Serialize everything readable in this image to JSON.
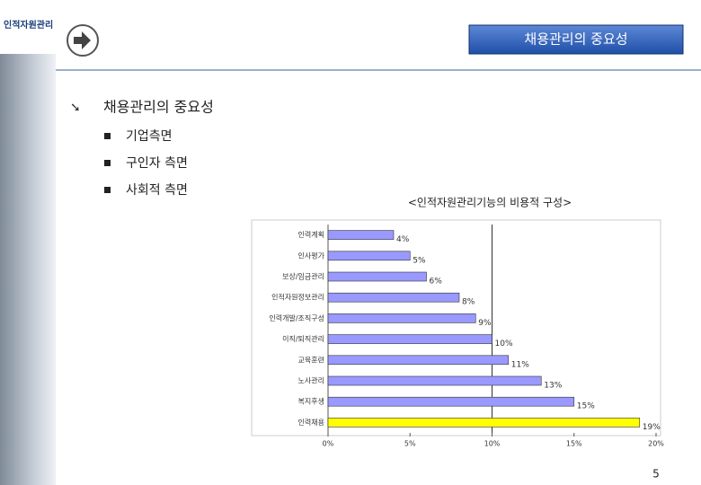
{
  "logo": "인적자원관리",
  "header": {
    "title": "채용관리의 중요성"
  },
  "section": {
    "title": "채용관리의 중요성",
    "bullets": [
      "기업측면",
      "구인자 측면",
      "사회적 측면"
    ]
  },
  "chart_data": {
    "type": "hbar",
    "title": "<인적자원관리기능의 비용적 구성>",
    "categories": [
      "인력계획",
      "인사평가",
      "보상/임금관리",
      "인적자원정보관리",
      "인력개발/조직구성",
      "이직/퇴직관리",
      "교육훈련",
      "노사관리",
      "복지후생",
      "인력채용"
    ],
    "values": [
      4,
      5,
      6,
      8,
      9,
      10,
      11,
      13,
      15,
      19
    ],
    "value_labels": [
      "4%",
      "5%",
      "6%",
      "8%",
      "9%",
      "10%",
      "11%",
      "13%",
      "15%",
      "19%"
    ],
    "colors": [
      "#9999ff",
      "#9999ff",
      "#9999ff",
      "#9999ff",
      "#9999ff",
      "#9999ff",
      "#9999ff",
      "#9999ff",
      "#9999ff",
      "#ffff00"
    ],
    "xlim": [
      0,
      20
    ],
    "xticks": [
      {
        "value": 0,
        "label": "0%"
      },
      {
        "value": 5,
        "label": "5%"
      },
      {
        "value": 10,
        "label": "10%"
      },
      {
        "value": 15,
        "label": "15%"
      },
      {
        "value": 20,
        "label": "20%"
      }
    ]
  },
  "page_number": "5"
}
